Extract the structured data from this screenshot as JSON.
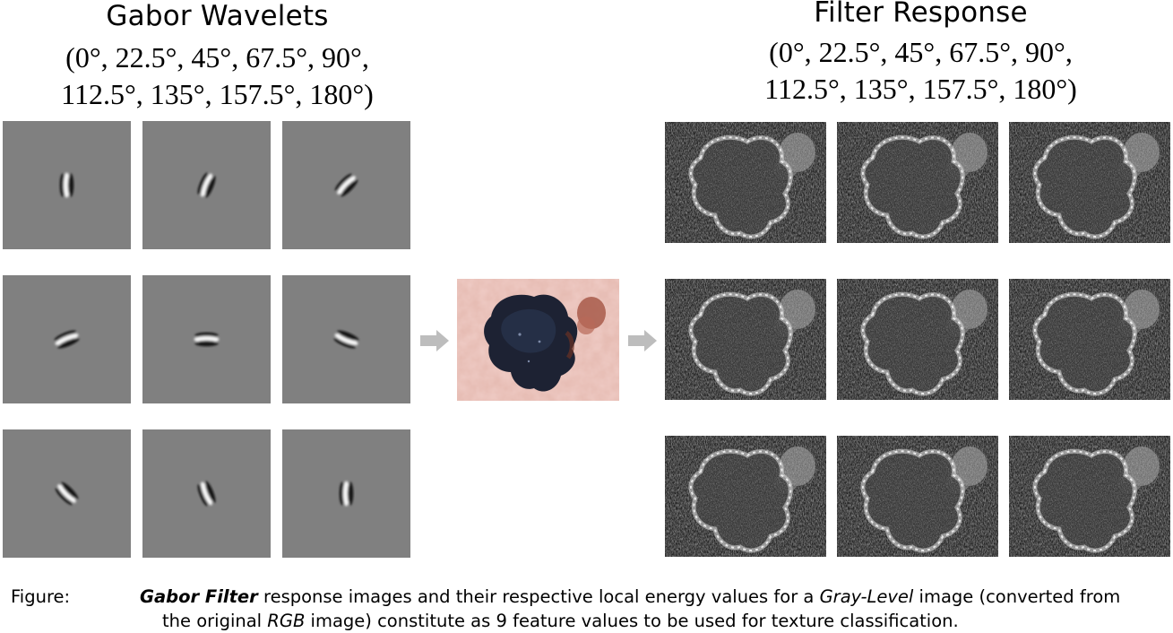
{
  "wavelets": {
    "title": "Gabor Wavelets",
    "angles_line1": "(0°, 22.5°, 45°, 67.5°, 90°,",
    "angles_line2": "112.5°, 135°, 157.5°, 180°)",
    "kernel_angles_deg": [
      90,
      67.5,
      45,
      22.5,
      0,
      157.5,
      135,
      112.5,
      90
    ]
  },
  "response": {
    "title": "Filter Response",
    "angles_line1": "(0°, 22.5°, 45°, 67.5°, 90°,",
    "angles_line2": "112.5°, 135°, 157.5°, 180°)"
  },
  "colors": {
    "kernel_background": "#808080",
    "arrow": "#bdbdbd",
    "skin": "#e8bfb4",
    "lesion": "#1d2233",
    "response_background": "#1e1e1e"
  },
  "caption": {
    "label": "Figure:",
    "emph_gabor_filter": "Gabor Filter",
    "text_1": " response images and their respective local energy values for a ",
    "emph_gray_level": "Gray-Level",
    "text_2": " image (converted from",
    "text_3": "the original ",
    "emph_rgb": "RGB",
    "text_4": " image) constitute as 9 feature values to be used for texture classification."
  }
}
